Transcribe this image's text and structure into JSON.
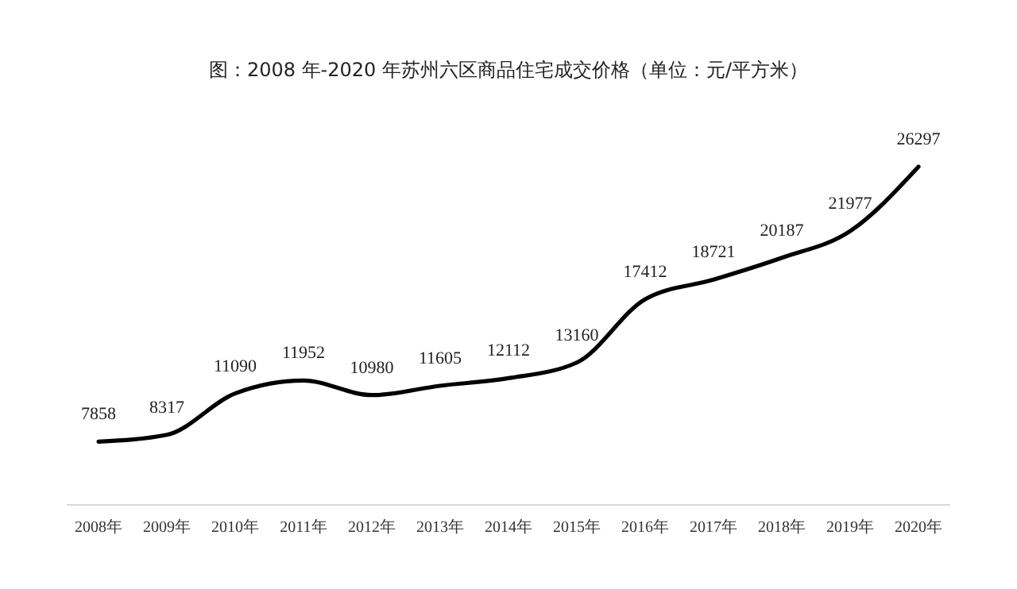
{
  "chart_data": {
    "type": "line",
    "title": "图：2008 年-2020 年苏州六区商品住宅成交价格（单位：元/平方米）",
    "categories": [
      "2008年",
      "2009年",
      "2010年",
      "2011年",
      "2012年",
      "2013年",
      "2014年",
      "2015年",
      "2016年",
      "2017年",
      "2018年",
      "2019年",
      "2020年"
    ],
    "series": [
      {
        "color": "#000000",
        "values": [
          7858,
          8317,
          11090,
          11952,
          10980,
          11605,
          12112,
          13160,
          17412,
          18721,
          20187,
          21977,
          26297
        ]
      }
    ],
    "data_labels": true,
    "marker": "none",
    "line_style": "solid"
  }
}
